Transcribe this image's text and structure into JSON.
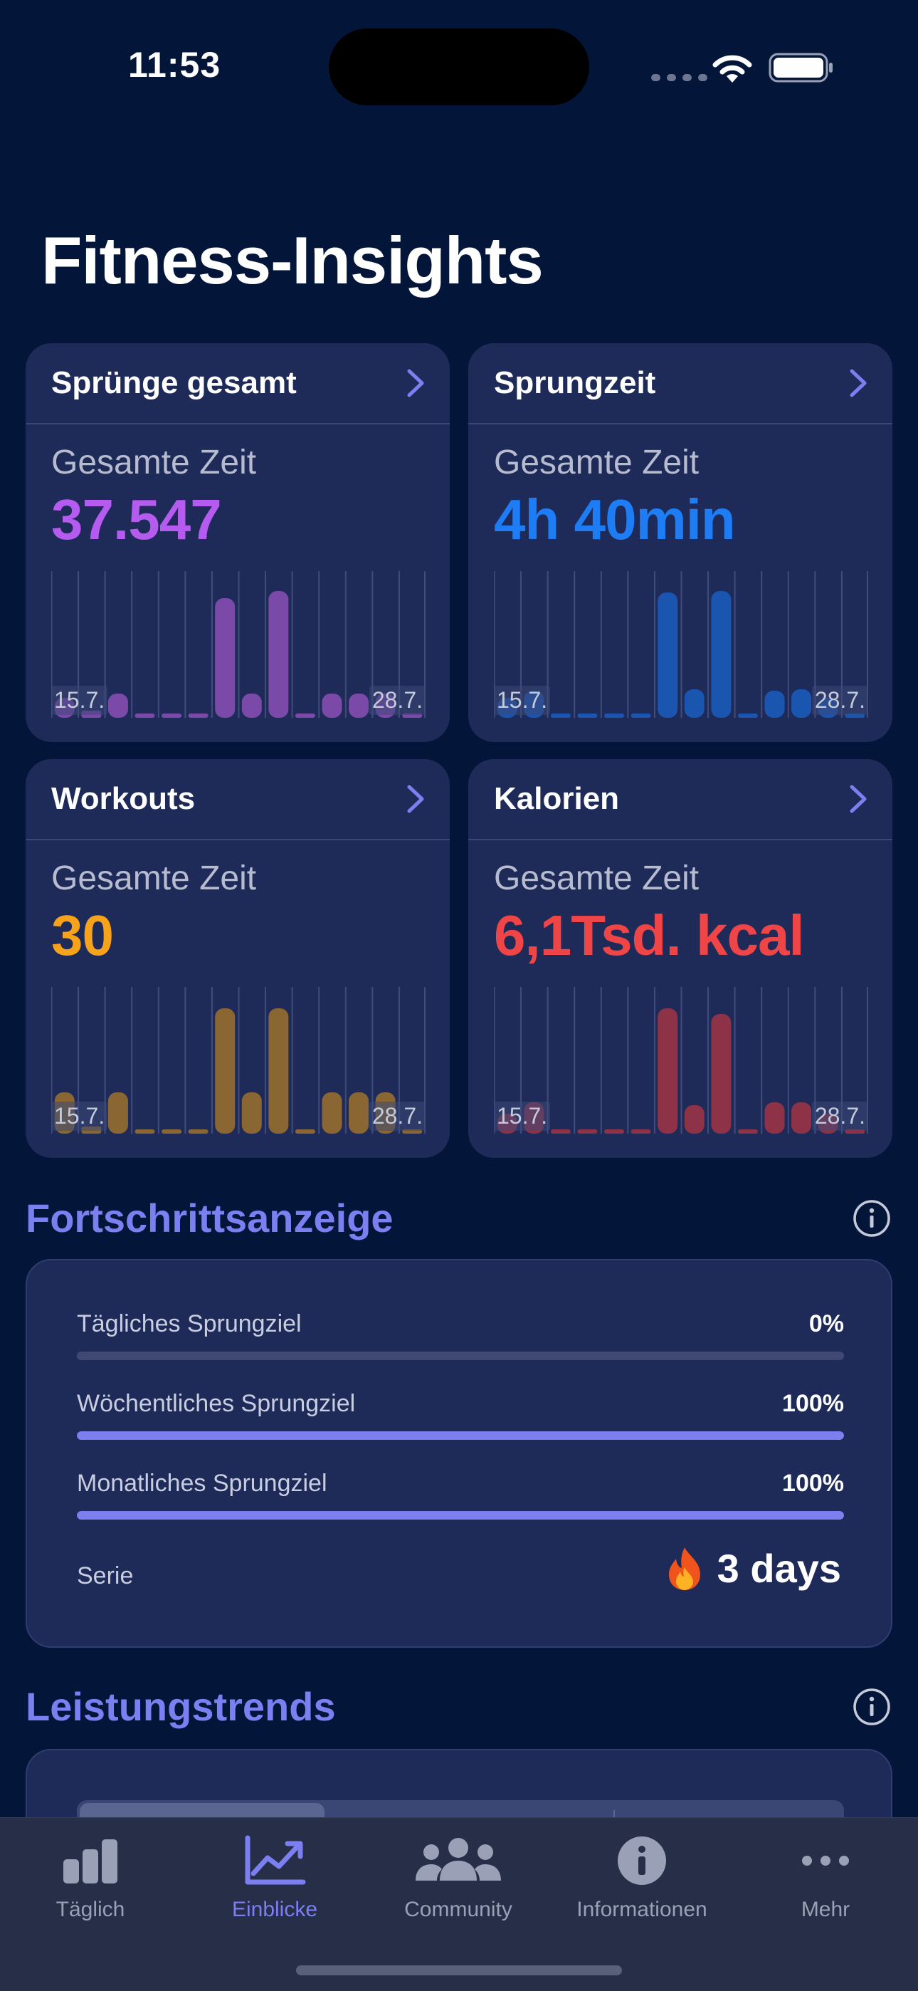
{
  "status_bar": {
    "time": "11:53"
  },
  "page_title": "Fitness-Insights",
  "cards": [
    {
      "title": "Sprünge gesamt",
      "subtitle": "Gesamte Zeit",
      "value": "37.547",
      "color": "#b65bf0",
      "bar_color": "#7b4aa8",
      "start_label": "15.7.",
      "end_label": "28.7.",
      "bars": [
        0.14,
        0.05,
        0.17,
        0.02,
        0.02,
        0.02,
        0.84,
        0.17,
        0.89,
        0.02,
        0.17,
        0.17,
        0.17,
        0.02
      ]
    },
    {
      "title": "Sprungzeit",
      "subtitle": "Gesamte Zeit",
      "value": "4h 40min",
      "color": "#1e7cf4",
      "bar_color": "#1a55b0",
      "start_label": "15.7.",
      "end_label": "28.7.",
      "bars": [
        0.14,
        0.19,
        0.02,
        0.02,
        0.02,
        0.02,
        0.88,
        0.2,
        0.89,
        0.02,
        0.19,
        0.2,
        0.14,
        0.02
      ]
    },
    {
      "title": "Workouts",
      "subtitle": "Gesamte Zeit",
      "value": "30",
      "color": "#f7a21b",
      "bar_color": "#8a6632",
      "start_label": "15.7.",
      "end_label": "28.7.",
      "bars": [
        0.29,
        0.05,
        0.29,
        0.02,
        0.02,
        0.02,
        0.88,
        0.29,
        0.88,
        0.02,
        0.29,
        0.29,
        0.29,
        0.02
      ]
    },
    {
      "title": "Kalorien",
      "subtitle": "Gesamte Zeit",
      "value": "6,1Tsd. kcal",
      "color": "#f04547",
      "bar_color": "#8e3247",
      "start_label": "15.7.",
      "end_label": "28.7.",
      "bars": [
        0.14,
        0.22,
        0.02,
        0.02,
        0.02,
        0.02,
        0.88,
        0.2,
        0.84,
        0.02,
        0.22,
        0.22,
        0.14,
        0.02
      ]
    }
  ],
  "progress": {
    "title": "Fortschrittsanzeige",
    "rows": [
      {
        "label": "Tägliches Sprungziel",
        "value": "0%",
        "fraction": 0
      },
      {
        "label": "Wöchentliches Sprungziel",
        "value": "100%",
        "fraction": 1
      },
      {
        "label": "Monatliches Sprungziel",
        "value": "100%",
        "fraction": 1
      }
    ],
    "streak_label": "Serie",
    "streak_value": "3 days"
  },
  "trends": {
    "title": "Leistungstrends"
  },
  "tabs": [
    {
      "label": "Täglich",
      "icon": "bar-chart-icon",
      "active": false
    },
    {
      "label": "Einblicke",
      "icon": "trend-chart-icon",
      "active": true
    },
    {
      "label": "Community",
      "icon": "people-icon",
      "active": false
    },
    {
      "label": "Informationen",
      "icon": "info-icon",
      "active": false
    },
    {
      "label": "Mehr",
      "icon": "more-icon",
      "active": false
    }
  ],
  "accent_color": "#7b7ff0"
}
